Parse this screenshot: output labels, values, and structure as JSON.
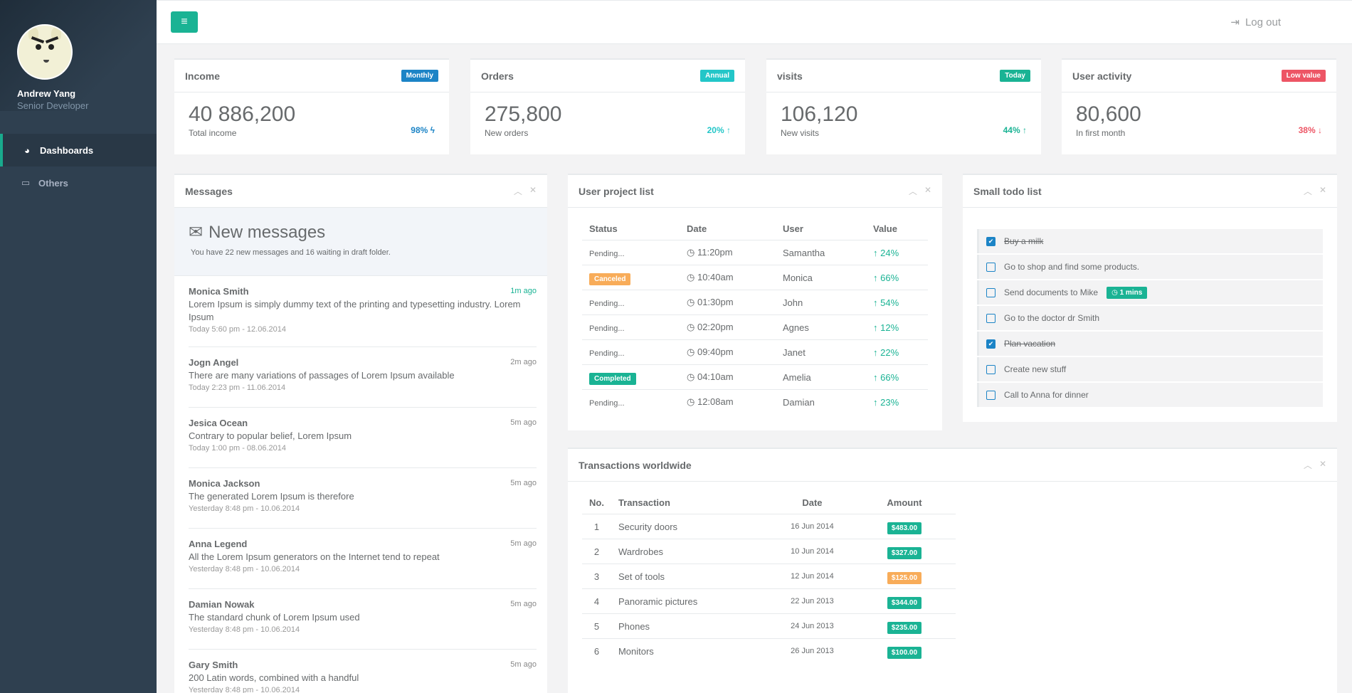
{
  "profile": {
    "name": "Andrew Yang",
    "role": "Senior Developer"
  },
  "nav": [
    {
      "label": "Dashboards",
      "icon": "dashboard-icon"
    },
    {
      "label": "Others",
      "icon": "monitor-icon"
    }
  ],
  "topbar": {
    "logout": "Log out"
  },
  "stats": [
    {
      "title": "Income",
      "badge": "Monthly",
      "badge_color": "#1c84c6",
      "value": "40 886,200",
      "sub": "Total income",
      "pct": "98%",
      "pct_color": "#1c84c6",
      "arrow": "ϟ"
    },
    {
      "title": "Orders",
      "badge": "Annual",
      "badge_color": "#23c6c8",
      "value": "275,800",
      "sub": "New orders",
      "pct": "20%",
      "pct_color": "#23c6c8",
      "arrow": "↑"
    },
    {
      "title": "visits",
      "badge": "Today",
      "badge_color": "#1ab394",
      "value": "106,120",
      "sub": "New visits",
      "pct": "44%",
      "pct_color": "#1ab394",
      "arrow": "↑"
    },
    {
      "title": "User activity",
      "badge": "Low value",
      "badge_color": "#ed5565",
      "value": "80,600",
      "sub": "In first month",
      "pct": "38%",
      "pct_color": "#ed5565",
      "arrow": "↓"
    }
  ],
  "messages": {
    "title": "Messages",
    "header": "New messages",
    "summary": "You have 22 new messages and 16 waiting in draft folder.",
    "items": [
      {
        "name": "Monica Smith",
        "ago": "1m ago",
        "text": "Lorem Ipsum is simply dummy text of the printing and typesetting industry. Lorem Ipsum",
        "when": "Today 5:60 pm - 12.06.2014"
      },
      {
        "name": "Jogn Angel",
        "ago": "2m ago",
        "text": "There are many variations of passages of Lorem Ipsum available",
        "when": "Today 2:23 pm - 11.06.2014"
      },
      {
        "name": "Jesica Ocean",
        "ago": "5m ago",
        "text": "Contrary to popular belief, Lorem Ipsum",
        "when": "Today 1:00 pm - 08.06.2014"
      },
      {
        "name": "Monica Jackson",
        "ago": "5m ago",
        "text": "The generated Lorem Ipsum is therefore",
        "when": "Yesterday 8:48 pm - 10.06.2014"
      },
      {
        "name": "Anna Legend",
        "ago": "5m ago",
        "text": "All the Lorem Ipsum generators on the Internet tend to repeat",
        "when": "Yesterday 8:48 pm - 10.06.2014"
      },
      {
        "name": "Damian Nowak",
        "ago": "5m ago",
        "text": "The standard chunk of Lorem Ipsum used",
        "when": "Yesterday 8:48 pm - 10.06.2014"
      },
      {
        "name": "Gary Smith",
        "ago": "5m ago",
        "text": "200 Latin words, combined with a handful",
        "when": "Yesterday 8:48 pm - 10.06.2014"
      }
    ]
  },
  "projects": {
    "title": "User project list",
    "headers": [
      "Status",
      "Date",
      "User",
      "Value"
    ],
    "rows": [
      {
        "status": "Pending...",
        "status_type": "text",
        "date": "11:20pm",
        "user": "Samantha",
        "value": "24%"
      },
      {
        "status": "Canceled",
        "status_type": "warning",
        "date": "10:40am",
        "user": "Monica",
        "value": "66%"
      },
      {
        "status": "Pending...",
        "status_type": "text",
        "date": "01:30pm",
        "user": "John",
        "value": "54%"
      },
      {
        "status": "Pending...",
        "status_type": "text",
        "date": "02:20pm",
        "user": "Agnes",
        "value": "12%"
      },
      {
        "status": "Pending...",
        "status_type": "text",
        "date": "09:40pm",
        "user": "Janet",
        "value": "22%"
      },
      {
        "status": "Completed",
        "status_type": "primary",
        "date": "04:10am",
        "user": "Amelia",
        "value": "66%"
      },
      {
        "status": "Pending...",
        "status_type": "text",
        "date": "12:08am",
        "user": "Damian",
        "value": "23%"
      }
    ]
  },
  "todo": {
    "title": "Small todo list",
    "items": [
      {
        "text": "Buy a milk",
        "done": true
      },
      {
        "text": "Go to shop and find some products.",
        "done": false
      },
      {
        "text": "Send documents to Mike",
        "done": false,
        "badge": "1 mins"
      },
      {
        "text": "Go to the doctor dr Smith",
        "done": false
      },
      {
        "text": "Plan vacation",
        "done": true
      },
      {
        "text": "Create new stuff",
        "done": false
      },
      {
        "text": "Call to Anna for dinner",
        "done": false
      }
    ]
  },
  "transactions": {
    "title": "Transactions worldwide",
    "headers": [
      "No.",
      "Transaction",
      "Date",
      "Amount"
    ],
    "rows": [
      {
        "no": "1",
        "name": "Security doors",
        "date": "16 Jun 2014",
        "amount": "$483.00",
        "color": "#1ab394"
      },
      {
        "no": "2",
        "name": "Wardrobes",
        "date": "10 Jun 2014",
        "amount": "$327.00",
        "color": "#1ab394"
      },
      {
        "no": "3",
        "name": "Set of tools",
        "date": "12 Jun 2014",
        "amount": "$125.00",
        "color": "#f8ac59"
      },
      {
        "no": "4",
        "name": "Panoramic pictures",
        "date": "22 Jun 2013",
        "amount": "$344.00",
        "color": "#1ab394"
      },
      {
        "no": "5",
        "name": "Phones",
        "date": "24 Jun 2013",
        "amount": "$235.00",
        "color": "#1ab394"
      },
      {
        "no": "6",
        "name": "Monitors",
        "date": "26 Jun 2013",
        "amount": "$100.00",
        "color": "#1ab394"
      }
    ]
  }
}
